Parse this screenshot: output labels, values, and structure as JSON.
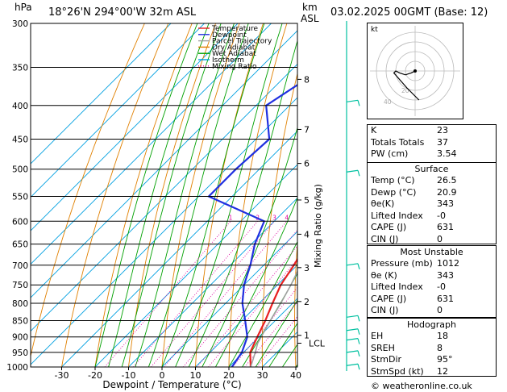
{
  "header": {
    "location": "18°26'N  294°00'W  32m  ASL",
    "datetime": "03.02.2025  00GMT  (Base: 12)",
    "left_unit": "hPa",
    "right_unit_top": "km",
    "right_unit_bottom": "ASL",
    "credit": "© weatheronline.co.uk"
  },
  "legend": [
    {
      "label": "Temperature",
      "color": "#e82020",
      "dash": ""
    },
    {
      "label": "Dewpoint",
      "color": "#2030e0",
      "dash": ""
    },
    {
      "label": "Parcel Trajectory",
      "color": "#a0a0a0",
      "dash": ""
    },
    {
      "label": "Dry Adiabat",
      "color": "#e08000",
      "dash": ""
    },
    {
      "label": "Wet Adiabat",
      "color": "#00a000",
      "dash": ""
    },
    {
      "label": "Isotherm",
      "color": "#00a0e0",
      "dash": ""
    },
    {
      "label": "Mixing Ratio",
      "color": "#e000a0",
      "dash": "1,2"
    }
  ],
  "chart_data": {
    "type": "line",
    "xlabel": "Dewpoint / Temperature (°C)",
    "ylabel_right": "Mixing Ratio (g/kg)",
    "xlim": [
      -35,
      40
    ],
    "xticks": [
      -30,
      -20,
      -10,
      0,
      10,
      20,
      30,
      40
    ],
    "pressure_levels": [
      300,
      350,
      400,
      450,
      500,
      550,
      600,
      650,
      700,
      750,
      800,
      850,
      900,
      950,
      1000
    ],
    "km_ticks": [
      {
        "p": 365,
        "label": "8"
      },
      {
        "p": 435,
        "label": "7"
      },
      {
        "p": 490,
        "label": "6"
      },
      {
        "p": 557,
        "label": "5"
      },
      {
        "p": 628,
        "label": "4"
      },
      {
        "p": 706,
        "label": "3"
      },
      {
        "p": 795,
        "label": "2"
      },
      {
        "p": 895,
        "label": "1"
      }
    ],
    "lcl": {
      "p": 920,
      "label": "LCL"
    },
    "mixing_ratio_labels": [
      "1",
      "2",
      "3",
      "4",
      "6",
      "8",
      "10",
      "16",
      "20",
      "25"
    ],
    "series": [
      {
        "name": "Temperature",
        "color": "#e82020",
        "points": [
          [
            1000,
            26.5
          ],
          [
            950,
            22.0
          ],
          [
            900,
            19.5
          ],
          [
            850,
            17.0
          ],
          [
            800,
            14.0
          ],
          [
            750,
            11.0
          ],
          [
            700,
            9.0
          ],
          [
            650,
            6.5
          ],
          [
            600,
            3.5
          ],
          [
            550,
            1.0
          ],
          [
            500,
            -3.0
          ],
          [
            450,
            -8.0
          ],
          [
            400,
            -14.0
          ],
          [
            350,
            -22.0
          ],
          [
            300,
            -31.0
          ]
        ]
      },
      {
        "name": "Dewpoint",
        "color": "#2030e0",
        "points": [
          [
            1000,
            20.9
          ],
          [
            950,
            19.5
          ],
          [
            900,
            16.5
          ],
          [
            850,
            11.0
          ],
          [
            800,
            5.0
          ],
          [
            750,
            0.0
          ],
          [
            700,
            -4.0
          ],
          [
            650,
            -9.0
          ],
          [
            600,
            -13.0
          ],
          [
            550,
            -37.0
          ],
          [
            500,
            -37.0
          ],
          [
            450,
            -36.0
          ],
          [
            400,
            -47.0
          ],
          [
            350,
            -41.0
          ],
          [
            300,
            -50.0
          ]
        ]
      },
      {
        "name": "Parcel Trajectory",
        "color": "#a0a0a0",
        "points": [
          [
            1000,
            26.5
          ],
          [
            950,
            23.5
          ],
          [
            920,
            21.5
          ],
          [
            850,
            18.5
          ],
          [
            800,
            16.5
          ],
          [
            750,
            14.0
          ],
          [
            700,
            11.0
          ],
          [
            650,
            8.0
          ],
          [
            600,
            4.5
          ],
          [
            550,
            1.0
          ],
          [
            500,
            -3.0
          ],
          [
            450,
            -8.5
          ],
          [
            400,
            -14.5
          ],
          [
            350,
            -21.5
          ],
          [
            300,
            -30.0
          ]
        ]
      }
    ]
  },
  "hodograph": {
    "unit_label": "kt",
    "ring_labels": [
      "20",
      "40"
    ],
    "points": [
      [
        0,
        0
      ],
      [
        -2,
        -1
      ],
      [
        -5,
        -2
      ],
      [
        -8,
        -1
      ],
      [
        -10,
        0
      ],
      [
        -11,
        -1
      ],
      [
        -4,
        -9
      ],
      [
        2,
        -15
      ]
    ]
  },
  "indices": [
    {
      "label": "K",
      "value": "23"
    },
    {
      "label": "Totals Totals",
      "value": "37"
    },
    {
      "label": "PW (cm)",
      "value": "3.54"
    }
  ],
  "surface": {
    "title": "Surface",
    "rows": [
      {
        "label": "Temp (°C)",
        "value": "26.5"
      },
      {
        "label": "Dewp (°C)",
        "value": "20.9"
      },
      {
        "label": "θe(K)",
        "value": "343"
      },
      {
        "label": "Lifted Index",
        "value": "-0"
      },
      {
        "label": "CAPE (J)",
        "value": "631"
      },
      {
        "label": "CIN (J)",
        "value": "0"
      }
    ]
  },
  "most_unstable": {
    "title": "Most Unstable",
    "rows": [
      {
        "label": "Pressure (mb)",
        "value": "1012"
      },
      {
        "label": "θe (K)",
        "value": "343"
      },
      {
        "label": "Lifted Index",
        "value": "-0"
      },
      {
        "label": "CAPE (J)",
        "value": "631"
      },
      {
        "label": "CIN (J)",
        "value": "0"
      }
    ]
  },
  "hodograph_panel": {
    "title": "Hodograph",
    "rows": [
      {
        "label": "EH",
        "value": "18"
      },
      {
        "label": "SREH",
        "value": "8"
      },
      {
        "label": "StmDir",
        "value": "95°"
      },
      {
        "label": "StmSpd (kt)",
        "value": "12"
      }
    ]
  },
  "wind_barbs_color": "#00c0a0"
}
